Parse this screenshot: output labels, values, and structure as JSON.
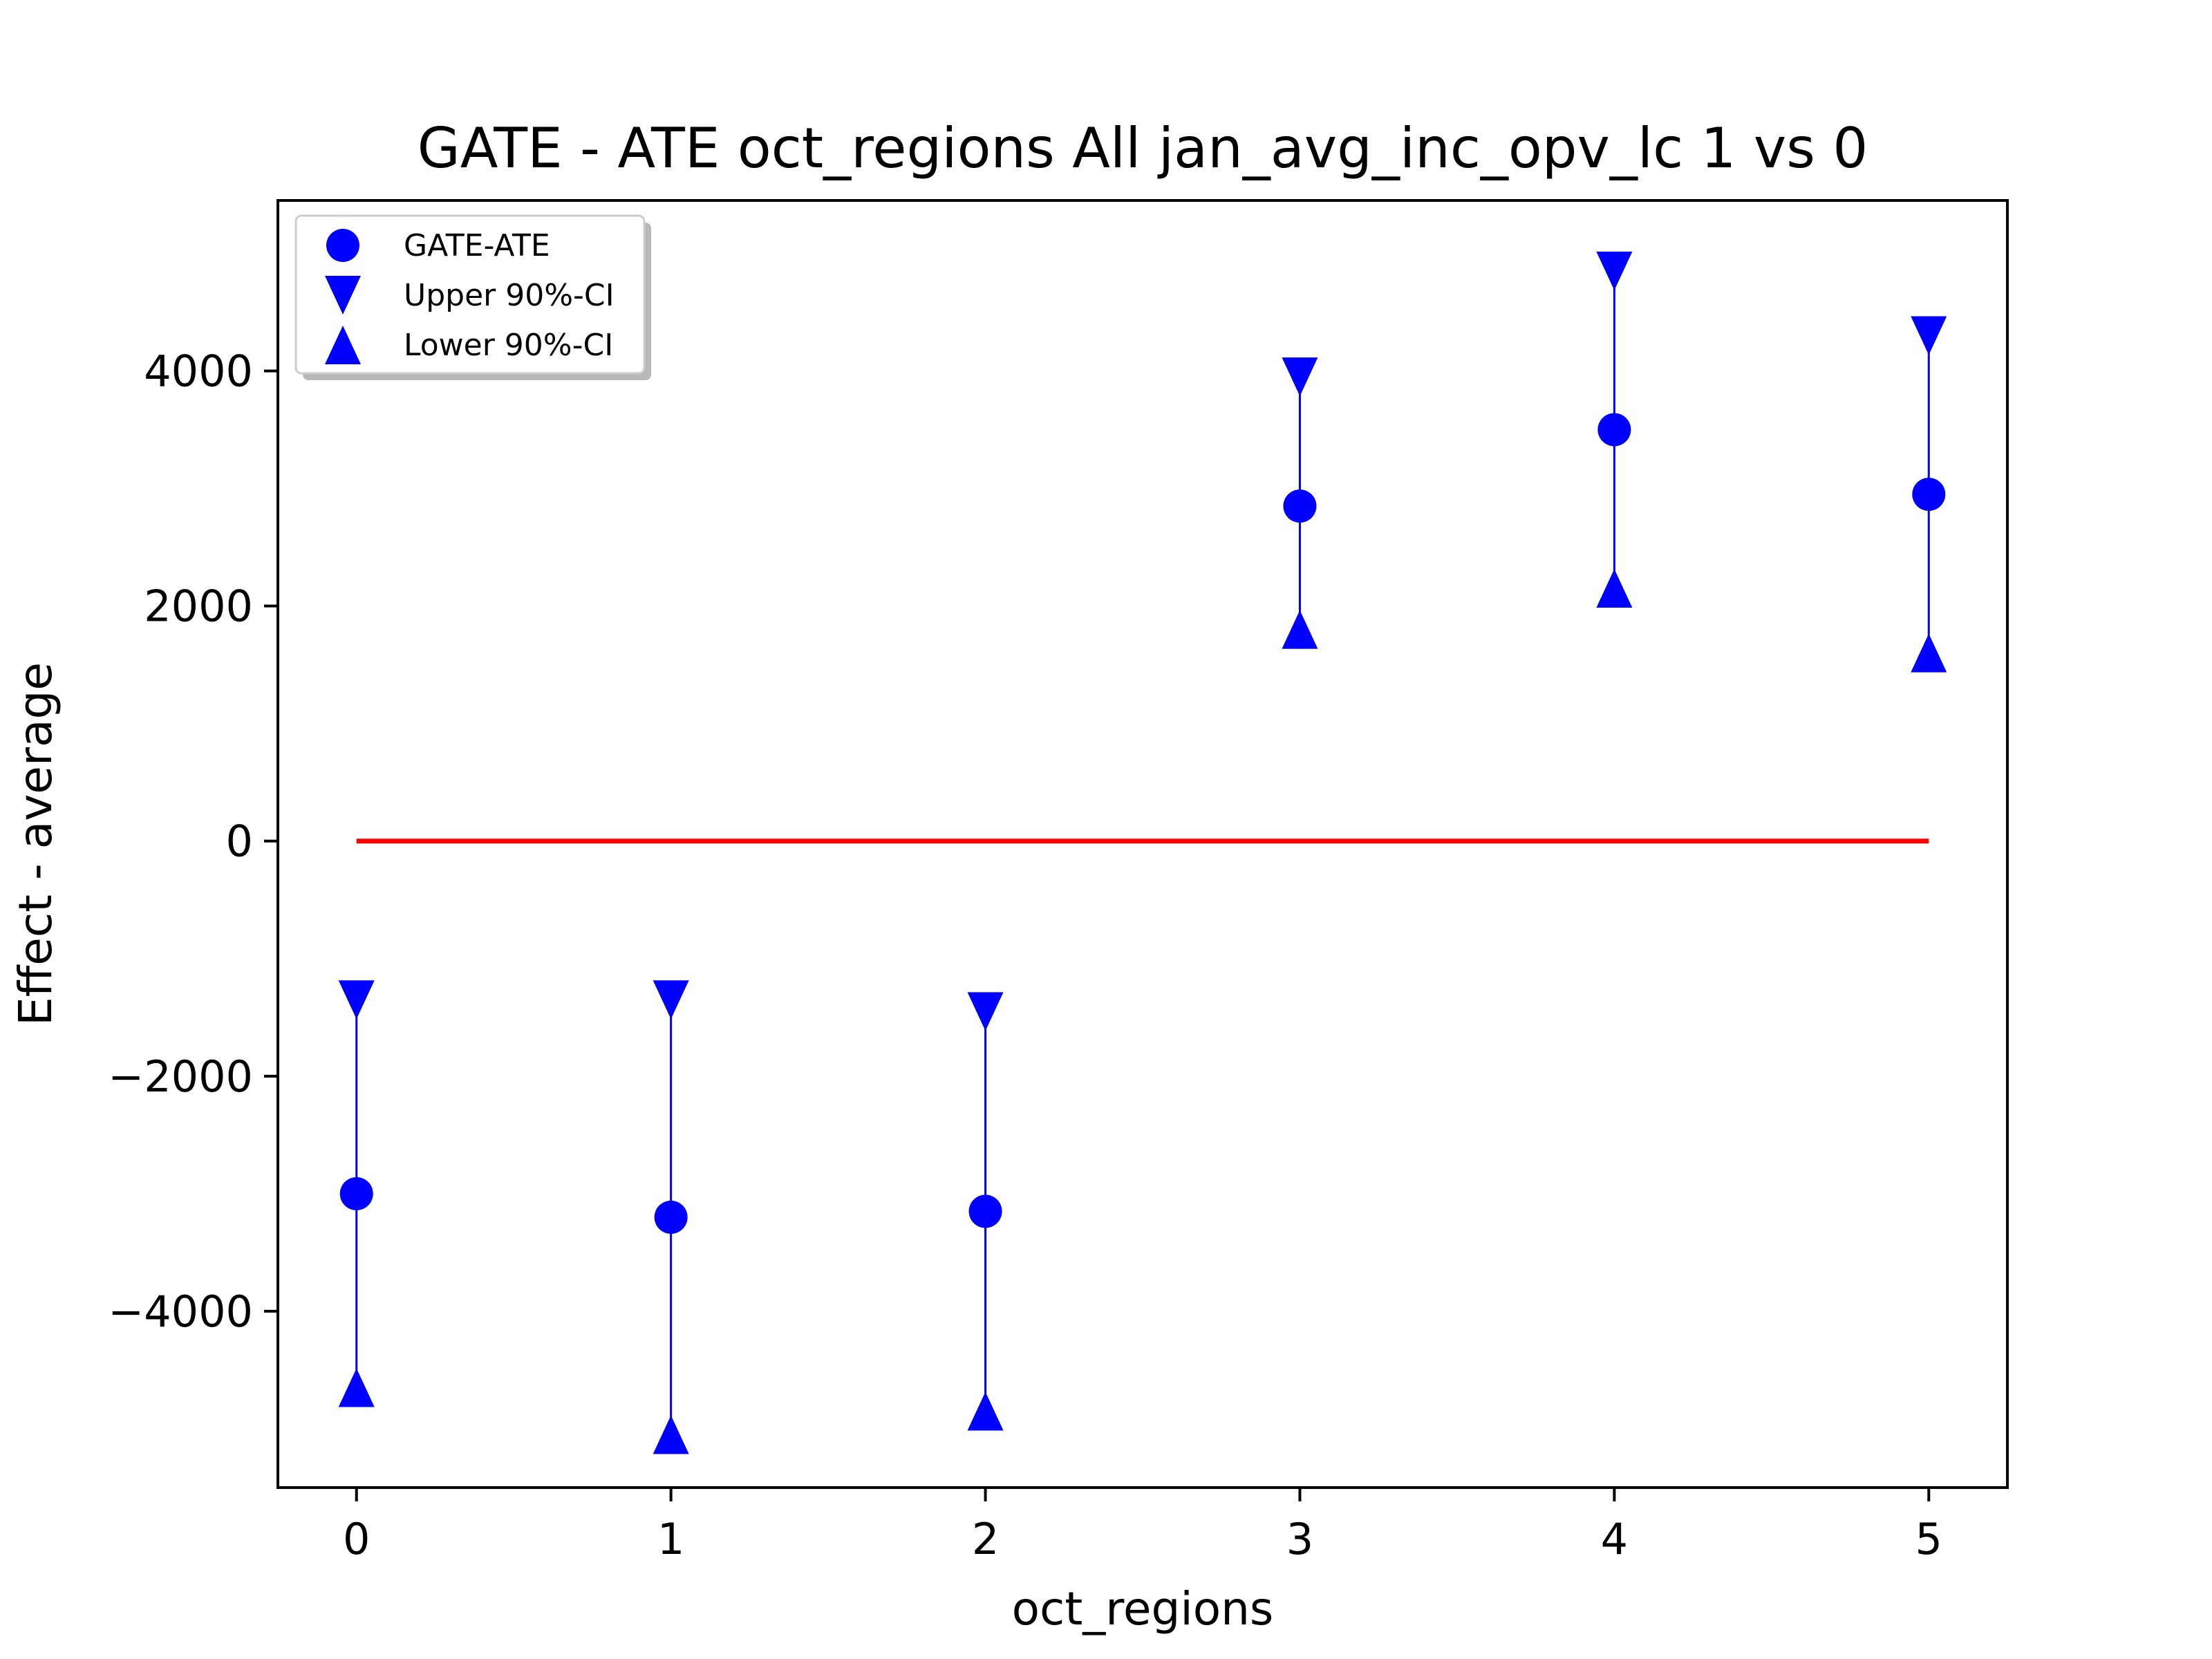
{
  "chart_data": {
    "type": "scatter",
    "title": "GATE - ATE oct_regions All jan_avg_inc_opv_lc  1 vs 0",
    "xlabel": "oct_regions",
    "ylabel": "Effect - average",
    "xlim": [
      -0.25,
      5.25
    ],
    "ylim": [
      -5500,
      5450
    ],
    "x_ticks": [
      0,
      1,
      2,
      3,
      4,
      5
    ],
    "y_ticks": [
      -4000,
      -2000,
      0,
      2000,
      4000
    ],
    "y_tick_labels": [
      "−4000",
      "−2000",
      "0",
      "2000",
      "4000"
    ],
    "x": [
      0,
      1,
      2,
      3,
      4,
      5
    ],
    "series": [
      {
        "name": "GATE-ATE",
        "marker": "circle",
        "values": [
          -3000,
          -3200,
          -3150,
          2850,
          3500,
          2950
        ]
      },
      {
        "name": "Upper 90%-CI",
        "marker": "triangle-down",
        "values": [
          -1350,
          -1350,
          -1450,
          3950,
          4850,
          4300
        ]
      },
      {
        "name": "Lower 90%-CI",
        "marker": "triangle-up",
        "values": [
          -4650,
          -5050,
          -4850,
          1800,
          2150,
          1600
        ]
      }
    ],
    "reference_line": {
      "y": 0,
      "x_range": [
        0,
        5
      ],
      "color": "#ff0000"
    },
    "colors": {
      "series": "#0000ff",
      "reference": "#ff0000"
    },
    "legend_position": "top-left",
    "grid": false
  }
}
